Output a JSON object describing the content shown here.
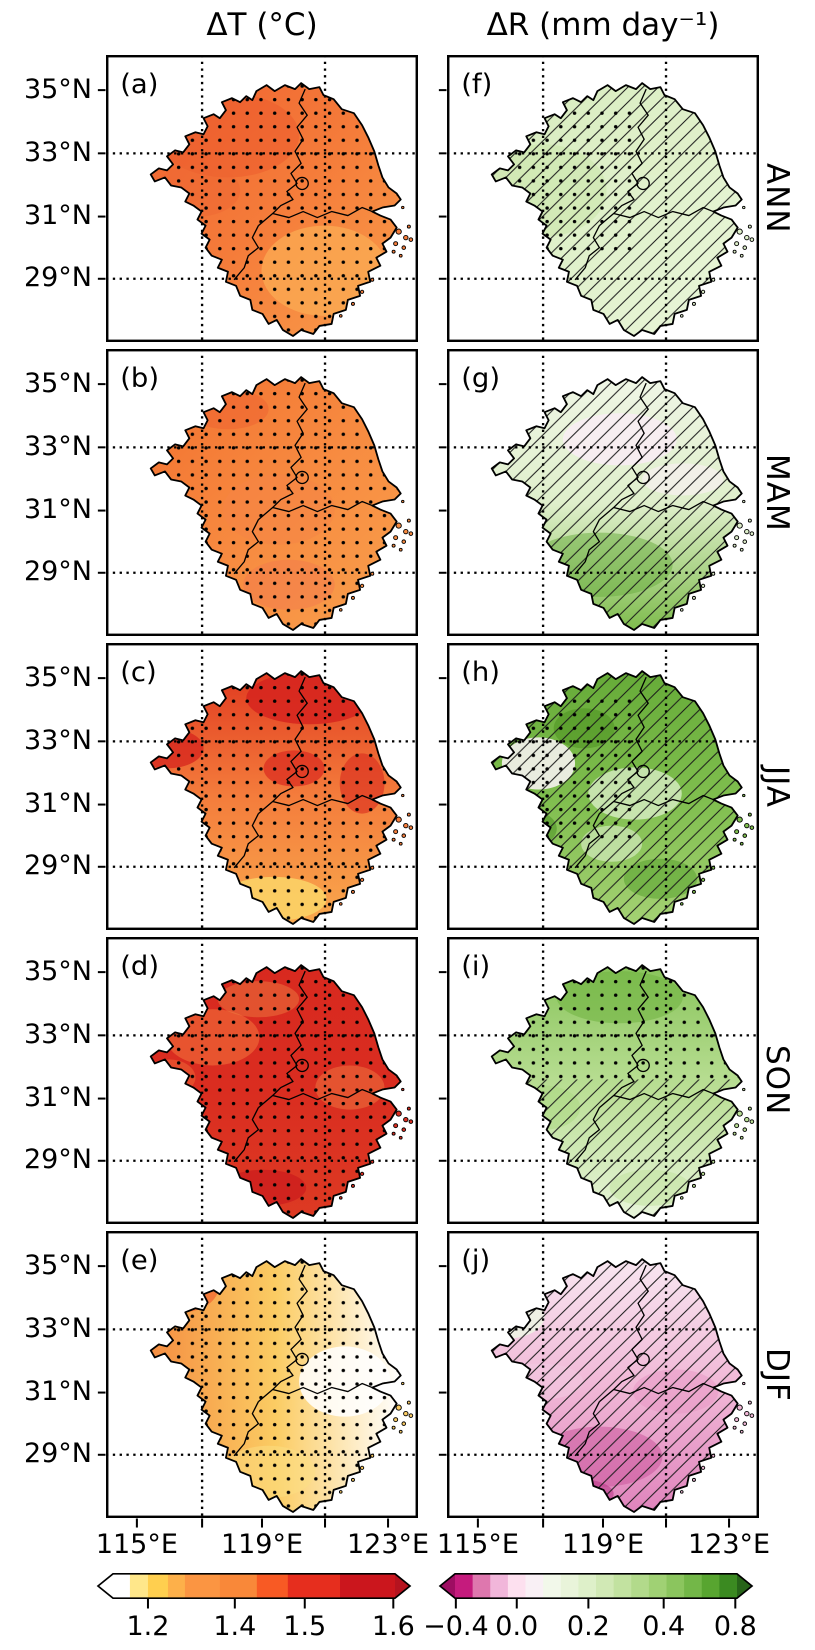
{
  "chart_data": {
    "type": "heatmap",
    "figure_kind": "multi-panel seasonal map grid (2 columns x 5 rows) with bottom colorbars",
    "columns": [
      {
        "title": "ΔT (°C)"
      },
      {
        "title": "ΔR (mm day⁻¹)"
      }
    ],
    "rows": [
      "ANN",
      "MAM",
      "JJA",
      "SON",
      "DJF"
    ],
    "axes": {
      "lat_tick_labels": [
        "35°N",
        "33°N",
        "31°N",
        "29°N"
      ],
      "lon_tick_labels": [
        "115°E",
        "119°E",
        "123°E"
      ],
      "lon_minor_ticks": [
        "115°E",
        "117°E",
        "119°E",
        "121°E",
        "123°E"
      ],
      "gridlines": "dotted black lines at 33°N, 29°N, 117°E, 121°E",
      "grid": true
    },
    "significance_markers": {
      "dots": "stippling (dotted grid) over significant areas",
      "hatch": "diagonal / hatching over significant areas"
    },
    "panels": [
      {
        "label": "(a)",
        "column": "ΔT (°C)",
        "season": "ANN",
        "marking": "dots",
        "values_approx": "ΔT ≈ +1.4 to +1.5 °C over most of the region, ≈ +1.3 °C in the southeast; stippled everywhere",
        "style": {
          "dir": "nw-se",
          "stops": [
            "#ef6130",
            "#f57c3a",
            "#f99e4b"
          ],
          "patches": [
            [
              120,
              80,
              70,
              42,
              "#ec5a2b",
              0.5
            ],
            [
              215,
              215,
              62,
              45,
              "#fbab53",
              0.75
            ],
            [
              90,
              135,
              42,
              26,
              "#ee6532",
              0.45
            ]
          ],
          "patterns": [
            [
              "dots",
              "all"
            ]
          ]
        }
      },
      {
        "label": "(b)",
        "column": "ΔT (°C)",
        "season": "MAM",
        "marking": "dots",
        "values_approx": "ΔT ≈ +1.35 to +1.5 °C; stippled everywhere",
        "style": {
          "dir": "nw-se",
          "stops": [
            "#f2702f",
            "#f78a40",
            "#f9a04c"
          ],
          "patches": [
            [
              170,
              160,
              55,
              35,
              "#f68345",
              0.5
            ],
            [
              180,
              235,
              45,
              25,
              "#f2774e",
              0.45
            ],
            [
              120,
              60,
              40,
              20,
              "#ee6030",
              0.45
            ]
          ],
          "patterns": [
            [
              "dots",
              "all"
            ]
          ]
        }
      },
      {
        "label": "(c)",
        "column": "ΔT (°C)",
        "season": "JJA",
        "marking": "dots",
        "values_approx": "ΔT ≈ +1.5–1.6 °C in the north, ≈ +1.2–1.3 °C at the southern tip; stippled",
        "style": {
          "dir": "n-s",
          "stops": [
            "#e13a20",
            "#f47d3c",
            "#f9a84d"
          ],
          "patches": [
            [
              200,
              55,
              62,
              26,
              "#d6241e",
              0.85
            ],
            [
              60,
              105,
              36,
              20,
              "#d6241e",
              0.75
            ],
            [
              185,
              125,
              30,
              18,
              "#da2a1f",
              0.7
            ],
            [
              165,
              255,
              52,
              22,
              "#fbd266",
              0.9
            ],
            [
              252,
              140,
              22,
              30,
              "#d92a1e",
              0.6
            ]
          ],
          "patterns": [
            [
              "dots",
              "all"
            ]
          ]
        }
      },
      {
        "label": "(d)",
        "column": "ΔT (°C)",
        "season": "SON",
        "marking": "dots",
        "values_approx": "ΔT ≈ +1.5 to >+1.6 °C (darkest/warmest panel); stippled",
        "style": {
          "dir": "n-s",
          "stops": [
            "#d8291f",
            "#da2d20",
            "#dd3a23"
          ],
          "patches": [
            [
              105,
              100,
              46,
              28,
              "#f1703a",
              0.6
            ],
            [
              240,
              150,
              34,
              22,
              "#ef7a40",
              0.5
            ],
            [
              150,
              62,
              40,
              18,
              "#ef8243",
              0.45
            ],
            [
              155,
              250,
              42,
              18,
              "#c8161c",
              0.6
            ],
            [
              62,
              140,
              26,
              18,
              "#f1703a",
              0.45
            ]
          ],
          "patterns": [
            [
              "dots",
              "all"
            ]
          ]
        }
      },
      {
        "label": "(e)",
        "column": "ΔT (°C)",
        "season": "DJF",
        "marking": "dots",
        "values_approx": "ΔT ≈ +1.4 °C in the west decreasing to ≈ +1.1 °C (white) in the east/southeast; stippled",
        "style": {
          "dir": "w-e",
          "stops": [
            "#f58e42",
            "#fbcc63",
            "#ffffff"
          ],
          "patches": [
            [
              75,
              55,
              36,
              26,
              "#f1602d",
              0.65
            ],
            [
              160,
              240,
              46,
              26,
              "#fce083",
              0.5
            ],
            [
              235,
              150,
              45,
              35,
              "#ffffff",
              0.85
            ]
          ],
          "patterns": [
            [
              "dots",
              "all"
            ]
          ]
        }
      },
      {
        "label": "(f)",
        "column": "ΔR (mm day⁻¹)",
        "season": "ANN",
        "marking": "hatch + dots",
        "values_approx": "ΔR ≈ +0.05 to +0.15 mm day⁻¹ (pale green); hatched, dots in west-central area",
        "style": {
          "dir": "nw-se",
          "stops": [
            "#d7ecbd",
            "#e0f1cb",
            "#eaf6da"
          ],
          "patches": [
            [
              95,
              135,
              62,
              46,
              "#cbe6ab",
              0.6
            ],
            [
              210,
              90,
              52,
              30,
              "#dff0c8",
              0.5
            ]
          ],
          "patterns": [
            [
              "hatch",
              "all"
            ],
            [
              "dots",
              "west"
            ]
          ]
        }
      },
      {
        "label": "(g)",
        "column": "ΔR (mm day⁻¹)",
        "season": "MAM",
        "marking": "hatch",
        "values_approx": "ΔR ≈ 0 in the north (small pink negative patches) to ≈ +0.3–0.5 mm day⁻¹ in the south; hatched",
        "style": {
          "dir": "n-s",
          "stops": [
            "#f0f6e6",
            "#dfefcb",
            "#7fbc4e"
          ],
          "patches": [
            [
              170,
              90,
              56,
              26,
              "#f9ecf4",
              0.85
            ],
            [
              150,
              215,
              72,
              32,
              "#68ac3e",
              0.5
            ],
            [
              232,
              130,
              40,
              16,
              "#fbf0f6",
              0.6
            ]
          ],
          "patterns": [
            [
              "hatch",
              "all"
            ]
          ]
        }
      },
      {
        "label": "(h)",
        "column": "ΔR (mm day⁻¹)",
        "season": "JJA",
        "marking": "hatch + dots",
        "values_approx": "ΔR ≈ +0.2 to +0.6 mm day⁻¹, patchy with near-zero white spots; hatched",
        "style": {
          "dir": "n-s",
          "stops": [
            "#66ab38",
            "#7fbe4e",
            "#a4d173"
          ],
          "patches": [
            [
              90,
              120,
              36,
              26,
              "#fdf4f9",
              0.85
            ],
            [
              185,
              150,
              46,
              26,
              "#ecf7e0",
              0.65
            ],
            [
              135,
              85,
              30,
              20,
              "#4d9221",
              0.55
            ],
            [
              82,
              185,
              26,
              18,
              "#448c1e",
              0.5
            ],
            [
              210,
              235,
              36,
              20,
              "#529e29",
              0.5
            ],
            [
              162,
              200,
              30,
              18,
              "#eef7e3",
              0.5
            ]
          ],
          "patterns": [
            [
              "hatch",
              "all"
            ],
            [
              "dots",
              "west"
            ]
          ]
        }
      },
      {
        "label": "(i)",
        "column": "ΔR (mm day⁻¹)",
        "season": "SON",
        "marking": "dots (north) + hatch (south)",
        "values_approx": "ΔR ≈ +0.1 to +0.3 mm day⁻¹ in the north (stippled), ≈ 0 to +0.15 in the south (hatched)",
        "style": {
          "dir": "n-s",
          "stops": [
            "#88c45a",
            "#bbdf96",
            "#e8f5da"
          ],
          "patches": [
            [
              170,
              60,
              62,
              26,
              "#6fb340",
              0.55
            ],
            [
              95,
              170,
              36,
              22,
              "#a9d77f",
              0.5
            ],
            [
              200,
              250,
              40,
              18,
              "#bfe19c",
              0.5
            ]
          ],
          "patterns": [
            [
              "dots",
              "north"
            ],
            [
              "hatch",
              "south"
            ]
          ]
        }
      },
      {
        "label": "(j)",
        "column": "ΔR (mm day⁻¹)",
        "season": "DJF",
        "marking": "hatch",
        "values_approx": "ΔR ≈ −0.05 mm day⁻¹ in the north grading to ≈ −0.3/−0.4 (dark pink) in the south; hatched",
        "style": {
          "dir": "n-s",
          "stops": [
            "#f8e7f1",
            "#f1b8d7",
            "#e084bc"
          ],
          "patches": [
            [
              60,
              85,
              36,
              22,
              "#eef3e4",
              0.9
            ],
            [
              150,
              225,
              62,
              30,
              "#c74f97",
              0.5
            ],
            [
              128,
              262,
              36,
              15,
              "#bb3a8a",
              0.6
            ],
            [
              225,
              160,
              42,
              22,
              "#e895c4",
              0.5
            ],
            [
              92,
              150,
              42,
              18,
              "#f3cbe1",
              0.55
            ]
          ],
          "patterns": [
            [
              "hatch",
              "all"
            ]
          ]
        }
      }
    ],
    "colorbars": [
      {
        "for": "ΔT (°C)",
        "orientation": "horizontal",
        "extended_both_ends": true,
        "ticks": [
          [
            "1.2",
            0.124
          ],
          [
            "1.4",
            0.432
          ],
          [
            "1.5",
            0.68
          ],
          [
            "1.6",
            0.994
          ]
        ],
        "segments": [
          [
            "#ffffff",
            0.06
          ],
          [
            "#ffe78a",
            0.064
          ],
          [
            "#ffcf4f",
            0.071
          ],
          [
            "#fdb04a",
            0.06
          ],
          [
            "#fb9542",
            0.124
          ],
          [
            "#f98839",
            0.131
          ],
          [
            "#f85a24",
            0.11
          ],
          [
            "#e62e1e",
            0.185
          ],
          [
            "#cb161d",
            0.195
          ]
        ],
        "arrow_left": "#ffffff",
        "arrow_right": "#b5131f"
      },
      {
        "for": "ΔR (mm day⁻¹)",
        "orientation": "horizontal",
        "extended_both_ends": true,
        "ticks": [
          [
            "−0.4",
            0.003
          ],
          [
            "0.0",
            0.219
          ],
          [
            "0.2",
            0.473
          ],
          [
            "0.4",
            0.74
          ],
          [
            "0.8",
            0.994
          ]
        ],
        "segments": [
          [
            "#c51b7d",
            0.0625
          ],
          [
            "#de77ae",
            0.0625
          ],
          [
            "#f1b6da",
            0.0625
          ],
          [
            "#fde0ef",
            0.0625
          ],
          [
            "#f9f0f5",
            0.0625
          ],
          [
            "#f2f8ea",
            0.0625
          ],
          [
            "#e9f4da",
            0.0625
          ],
          [
            "#def0c9",
            0.0625
          ],
          [
            "#d1e9b5",
            0.0625
          ],
          [
            "#c2e2a0",
            0.0625
          ],
          [
            "#b2da8b",
            0.0625
          ],
          [
            "#a0d174",
            0.0625
          ],
          [
            "#8bc55e",
            0.0625
          ],
          [
            "#73b748",
            0.0625
          ],
          [
            "#58a530",
            0.0625
          ],
          [
            "#3b8a21",
            0.0625
          ]
        ],
        "arrow_left": "#9e0d62",
        "arrow_right": "#276419"
      }
    ]
  }
}
